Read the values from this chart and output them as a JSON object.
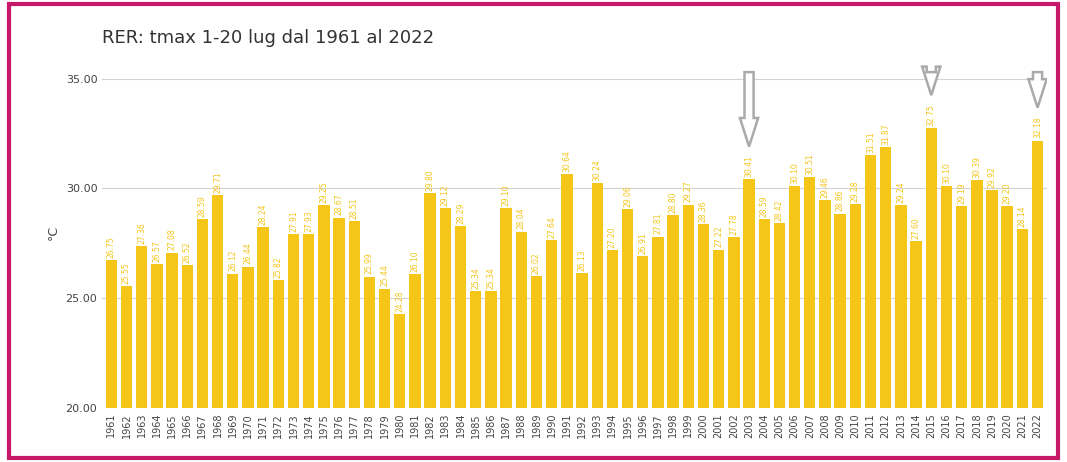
{
  "title": "RER: tmax 1-20 lug dal 1961 al 2022",
  "ylabel": "°C",
  "ylim": [
    20.0,
    36.0
  ],
  "yticks": [
    20.0,
    25.0,
    30.0,
    35.0
  ],
  "bar_color": "#F5C518",
  "background_color": "#ffffff",
  "border_color": "#C8186A",
  "years": [
    1961,
    1962,
    1963,
    1964,
    1965,
    1966,
    1967,
    1968,
    1969,
    1970,
    1971,
    1972,
    1973,
    1974,
    1975,
    1976,
    1977,
    1978,
    1979,
    1980,
    1981,
    1982,
    1983,
    1984,
    1985,
    1986,
    1987,
    1988,
    1989,
    1990,
    1991,
    1992,
    1993,
    1994,
    1995,
    1996,
    1997,
    1998,
    1999,
    2000,
    2001,
    2002,
    2003,
    2004,
    2005,
    2006,
    2007,
    2008,
    2009,
    2010,
    2011,
    2012,
    2013,
    2014,
    2015,
    2016,
    2017,
    2018,
    2019,
    2020,
    2021,
    2022
  ],
  "values": [
    26.75,
    25.55,
    27.36,
    26.57,
    27.08,
    26.52,
    28.59,
    29.71,
    26.12,
    26.44,
    28.24,
    25.82,
    27.91,
    27.93,
    29.25,
    28.67,
    28.51,
    25.99,
    25.44,
    24.28,
    26.1,
    29.8,
    29.12,
    28.29,
    25.34,
    25.34,
    29.1,
    28.04,
    26.02,
    27.64,
    30.64,
    26.13,
    30.24,
    27.2,
    29.06,
    26.91,
    27.81,
    28.8,
    29.27,
    28.36,
    27.22,
    27.78,
    30.41,
    28.59,
    28.42,
    30.1,
    30.51,
    29.46,
    28.86,
    29.28,
    31.51,
    31.87,
    29.24,
    27.6,
    32.75,
    30.1,
    29.19,
    30.39,
    29.92,
    29.2,
    28.14,
    32.18
  ],
  "arrow_years": [
    2003,
    2015,
    2022
  ],
  "value_label_fontsize": 5.5,
  "title_fontsize": 13
}
